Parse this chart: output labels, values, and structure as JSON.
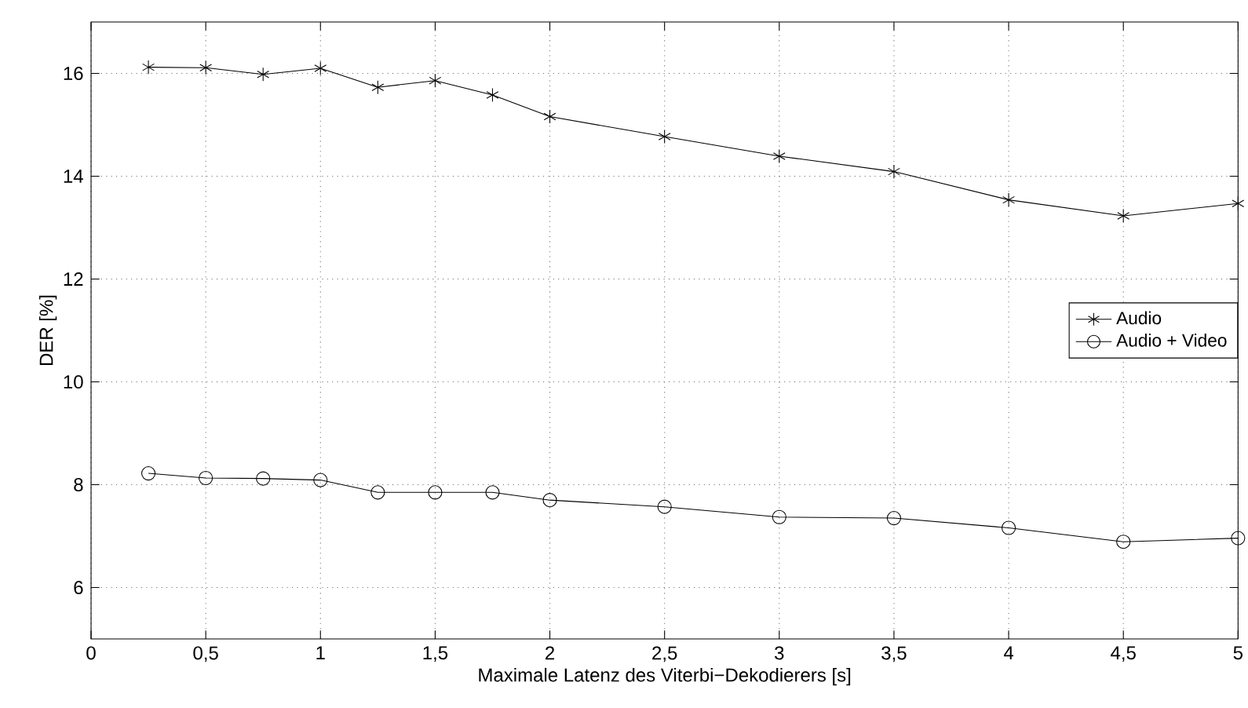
{
  "chart_data": {
    "type": "line",
    "xlabel": "Maximale Latenz des Viterbi−Dekodierers [s]",
    "ylabel": "DER [%]",
    "x": [
      0.25,
      0.5,
      0.75,
      1,
      1.25,
      1.5,
      1.75,
      2,
      2.5,
      3,
      3.5,
      4,
      4.5,
      5
    ],
    "series": [
      {
        "name": "Audio",
        "color": "#000000",
        "marker": "cross",
        "values": [
          16.12,
          16.11,
          15.98,
          16.1,
          15.73,
          15.86,
          15.58,
          15.16,
          14.77,
          14.39,
          14.09,
          13.54,
          13.23,
          13.47
        ]
      },
      {
        "name": "Audio + Video",
        "color": "#000000",
        "marker": "circle",
        "values": [
          8.22,
          8.13,
          8.12,
          8.09,
          7.85,
          7.85,
          7.85,
          7.7,
          7.57,
          7.37,
          7.35,
          7.16,
          6.89,
          6.96
        ]
      }
    ],
    "xlim": [
      0,
      5
    ],
    "ylim": [
      5,
      17
    ],
    "xticks": [
      0,
      {
        "value": 0.5,
        "label": "0,5"
      },
      1,
      {
        "value": 1.5,
        "label": "1,5"
      },
      2,
      {
        "value": 2.5,
        "label": "2,5"
      },
      3,
      {
        "value": 3.5,
        "label": "3,5"
      },
      4,
      {
        "value": 4.5,
        "label": "4,5"
      },
      5
    ],
    "yticks": [
      6,
      8,
      10,
      12,
      14,
      16
    ],
    "grid": true,
    "legend": "right",
    "line_style": "solid"
  }
}
